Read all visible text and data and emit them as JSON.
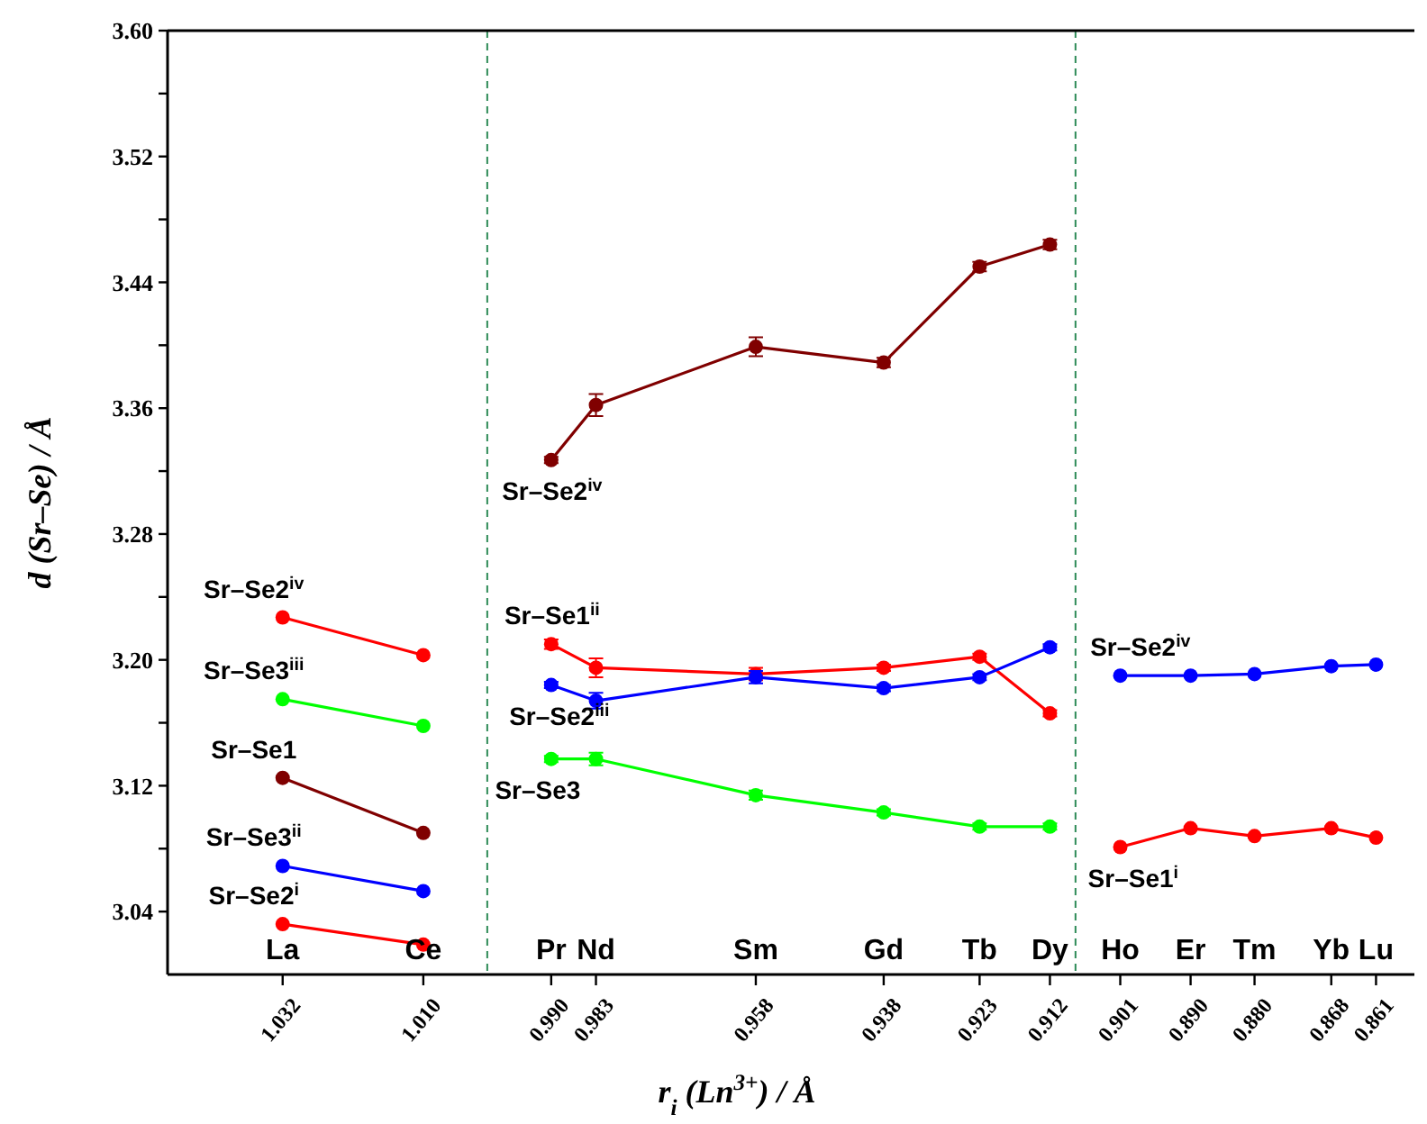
{
  "chart_data": {
    "type": "line",
    "xlabel": "r$_{i}$ (Ln$^{3+}$) / Å",
    "ylabel": "d (Sr–Se) / Å",
    "xlim": [
      1.05,
      0.855
    ],
    "ylim": [
      3.0,
      3.6
    ],
    "xticks": [
      {
        "value": 1.032,
        "label": "1.032"
      },
      {
        "value": 1.01,
        "label": "1.010"
      },
      {
        "value": 0.99,
        "label": "0.990"
      },
      {
        "value": 0.983,
        "label": "0.983"
      },
      {
        "value": 0.958,
        "label": "0.958"
      },
      {
        "value": 0.938,
        "label": "0.938"
      },
      {
        "value": 0.923,
        "label": "0.923"
      },
      {
        "value": 0.912,
        "label": "0.912"
      },
      {
        "value": 0.901,
        "label": "0.901"
      },
      {
        "value": 0.89,
        "label": "0.890"
      },
      {
        "value": 0.88,
        "label": "0.880"
      },
      {
        "value": 0.868,
        "label": "0.868"
      },
      {
        "value": 0.861,
        "label": "0.861"
      }
    ],
    "yticks": [
      {
        "value": 3.04,
        "label": "3.04"
      },
      {
        "value": 3.08,
        "label": null
      },
      {
        "value": 3.12,
        "label": "3.12"
      },
      {
        "value": 3.16,
        "label": null
      },
      {
        "value": 3.2,
        "label": "3.20"
      },
      {
        "value": 3.24,
        "label": null
      },
      {
        "value": 3.28,
        "label": "3.28"
      },
      {
        "value": 3.32,
        "label": null
      },
      {
        "value": 3.36,
        "label": "3.36"
      },
      {
        "value": 3.4,
        "label": null
      },
      {
        "value": 3.44,
        "label": "3.44"
      },
      {
        "value": 3.48,
        "label": null
      },
      {
        "value": 3.52,
        "label": "3.52"
      },
      {
        "value": 3.56,
        "label": null
      },
      {
        "value": 3.6,
        "label": "3.60"
      }
    ],
    "grid": false,
    "marker": "circle",
    "line_style": "solid",
    "series": [
      {
        "name": "Sr–Se2$^{iv}$",
        "color": "#ff0000",
        "x": [
          1.032,
          1.01
        ],
        "values": [
          3.227,
          3.203
        ]
      },
      {
        "name": "Sr–Se3$^{iii}$",
        "color": "#00ff00",
        "x": [
          1.032,
          1.01
        ],
        "values": [
          3.175,
          3.158
        ]
      },
      {
        "name": "Sr–Se1",
        "color": "#800000",
        "x": [
          1.032,
          1.01
        ],
        "values": [
          3.125,
          3.09
        ]
      },
      {
        "name": "Sr–Se3$^{ii}$",
        "color": "#0000ff",
        "x": [
          1.032,
          1.01
        ],
        "values": [
          3.069,
          3.053
        ]
      },
      {
        "name": "Sr–Se2$^{i}$",
        "color": "#ff0000",
        "x": [
          1.032,
          1.01
        ],
        "values": [
          3.032,
          3.019
        ]
      },
      {
        "name": "Sr–Se2$^{iv}$",
        "color": "#800000",
        "x": [
          0.99,
          0.983,
          0.958,
          0.938,
          0.923,
          0.912
        ],
        "values": [
          3.327,
          3.362,
          3.399,
          3.389,
          3.45,
          3.464
        ],
        "errors": [
          0.002,
          0.007,
          0.006,
          0.003,
          0.003,
          0.003
        ]
      },
      {
        "name": "Sr–Se1$^{ii}$",
        "color": "#ff0000",
        "x": [
          0.99,
          0.983,
          0.958,
          0.938,
          0.923,
          0.912
        ],
        "values": [
          3.21,
          3.195,
          3.191,
          3.195,
          3.202,
          3.166
        ],
        "errors": [
          0.003,
          0.006,
          0.004,
          0.002,
          0.002,
          0.002
        ]
      },
      {
        "name": "Sr–Se2$^{iii}$",
        "color": "#0000ff",
        "x": [
          0.99,
          0.983,
          0.958,
          0.938,
          0.923,
          0.912
        ],
        "values": [
          3.184,
          3.174,
          3.189,
          3.182,
          3.189,
          3.208
        ],
        "errors": [
          0.002,
          0.005,
          0.004,
          0.002,
          0.002,
          0.002
        ]
      },
      {
        "name": "Sr–Se3",
        "color": "#00ff00",
        "x": [
          0.99,
          0.983,
          0.958,
          0.938,
          0.923,
          0.912
        ],
        "values": [
          3.137,
          3.137,
          3.114,
          3.103,
          3.094,
          3.094
        ],
        "errors": [
          0.002,
          0.004,
          0.003,
          0.002,
          0.002,
          0.002
        ]
      },
      {
        "name": "Sr–Se2$^{iv}$",
        "color": "#0000ff",
        "x": [
          0.901,
          0.89,
          0.88,
          0.868,
          0.861
        ],
        "values": [
          3.19,
          3.19,
          3.191,
          3.196,
          3.197
        ]
      },
      {
        "name": "Sr–Se1$^{i}$",
        "color": "#ff0000",
        "x": [
          0.901,
          0.89,
          0.88,
          0.868,
          0.861
        ],
        "values": [
          3.081,
          3.093,
          3.088,
          3.093,
          3.087
        ]
      }
    ],
    "ref_lines": [
      {
        "axis": "x",
        "value": 1.0,
        "color": "#2e8b57",
        "line_style": "dashed"
      },
      {
        "axis": "x",
        "value": 0.908,
        "color": "#2e8b57",
        "line_style": "dashed"
      }
    ],
    "annotations": [
      "La",
      "Ce",
      "Pr",
      "Nd",
      "Sm",
      "Gd",
      "Tb",
      "Dy",
      "Ho",
      "Er",
      "Tm",
      "Yb",
      "Lu"
    ]
  }
}
